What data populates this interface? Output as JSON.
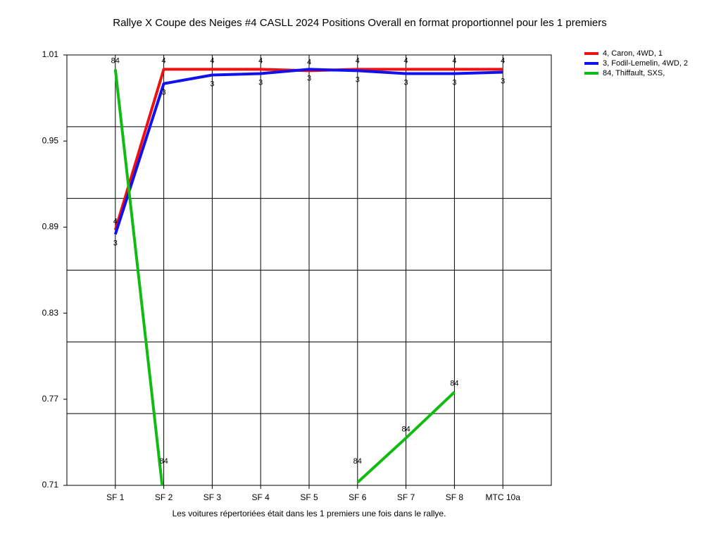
{
  "chart_data": {
    "type": "line",
    "title": "Rallye X Coupe des Neiges #4 CASLL 2024  Positions Overall en format proportionnel pour les 1 premiers",
    "x_label": "Les voitures répertoriées était dans les 1 premiers une fois dans le rallye.",
    "categories": [
      "SF 1",
      "SF 2",
      "SF 3",
      "SF 4",
      "SF 5",
      "SF 6",
      "SF 7",
      "SF 8",
      "MTC 10a"
    ],
    "ylim": [
      0.71,
      1.01
    ],
    "yticks": [
      1.01,
      0.95,
      0.89,
      0.83,
      0.77,
      0.71
    ],
    "ygrid": [
      0.96,
      0.91,
      0.86,
      0.81,
      0.76
    ],
    "grid": true,
    "legend": "right",
    "series": [
      {
        "name": "4, Caron, 4WD, 1",
        "color": "#ee1111",
        "point_label": "4",
        "values": [
          0.888,
          1.0,
          1.0,
          1.0,
          0.999,
          1.0,
          1.0,
          1.0,
          1.0
        ]
      },
      {
        "name": "3, Fodil-Lemelin, 4WD, 2",
        "color": "#1111ee",
        "point_label": "3",
        "values": [
          0.885,
          0.99,
          0.996,
          0.997,
          1.0,
          0.999,
          0.997,
          0.997,
          0.998
        ]
      },
      {
        "name": "84, Thiffault, SXS,",
        "color": "#11bb11",
        "point_label": "84",
        "values": [
          1.0,
          0.7,
          null,
          null,
          null,
          0.712,
          0.743,
          0.775,
          null
        ]
      }
    ]
  }
}
